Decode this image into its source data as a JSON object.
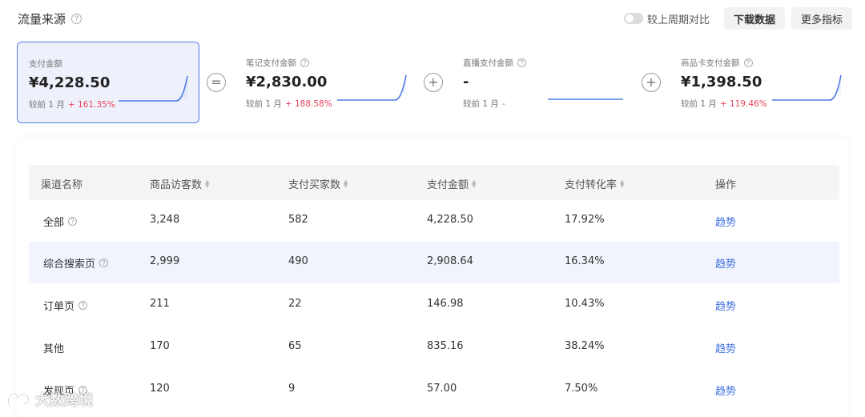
{
  "header": {
    "title": "流量来源",
    "help_icon": "?",
    "compare_label": "较上周期对比",
    "download_label": "下载数据",
    "more_label": "更多指标"
  },
  "cards": [
    {
      "label": "支付金额",
      "value": "¥4,228.50",
      "cmp_label": "较前 1 月",
      "cmp_value": "+ 161.35%",
      "active": true
    },
    {
      "label": "笔记支付金额",
      "value": "¥2,830.00",
      "cmp_label": "较前 1 月",
      "cmp_value": "+ 188.58%"
    },
    {
      "label": "直播支付金额",
      "value": "-",
      "cmp_label": "较前 1 月",
      "cmp_value": "-"
    },
    {
      "label": "商品卡支付金额",
      "value": "¥1,398.50",
      "cmp_label": "较前 1 月",
      "cmp_value": "+ 119.46%"
    }
  ],
  "operators": [
    "=",
    "+",
    "+"
  ],
  "table": {
    "columns": [
      "渠道名称",
      "商品访客数",
      "支付买家数",
      "支付金额",
      "支付转化率",
      "操作"
    ],
    "rows": [
      {
        "channel": "全部",
        "visitors": "3,248",
        "buyers": "582",
        "amount": "4,228.50",
        "rate": "17.92%",
        "action": "趋势"
      },
      {
        "channel": "综合搜索页",
        "visitors": "2,999",
        "buyers": "490",
        "amount": "2,908.64",
        "rate": "16.34%",
        "action": "趋势"
      },
      {
        "channel": "订单页",
        "visitors": "211",
        "buyers": "22",
        "amount": "146.98",
        "rate": "10.43%",
        "action": "趋势"
      },
      {
        "channel": "其他",
        "visitors": "170",
        "buyers": "65",
        "amount": "835.16",
        "rate": "38.24%",
        "action": "趋势"
      },
      {
        "channel": "发现页",
        "visitors": "120",
        "buyers": "9",
        "amount": "57.00",
        "rate": "7.50%",
        "action": "趋势"
      }
    ]
  },
  "watermark": "大数跨境",
  "colors": {
    "accent": "#4f7ee6",
    "positive": "#e8455e",
    "link": "#3e6fe0"
  }
}
